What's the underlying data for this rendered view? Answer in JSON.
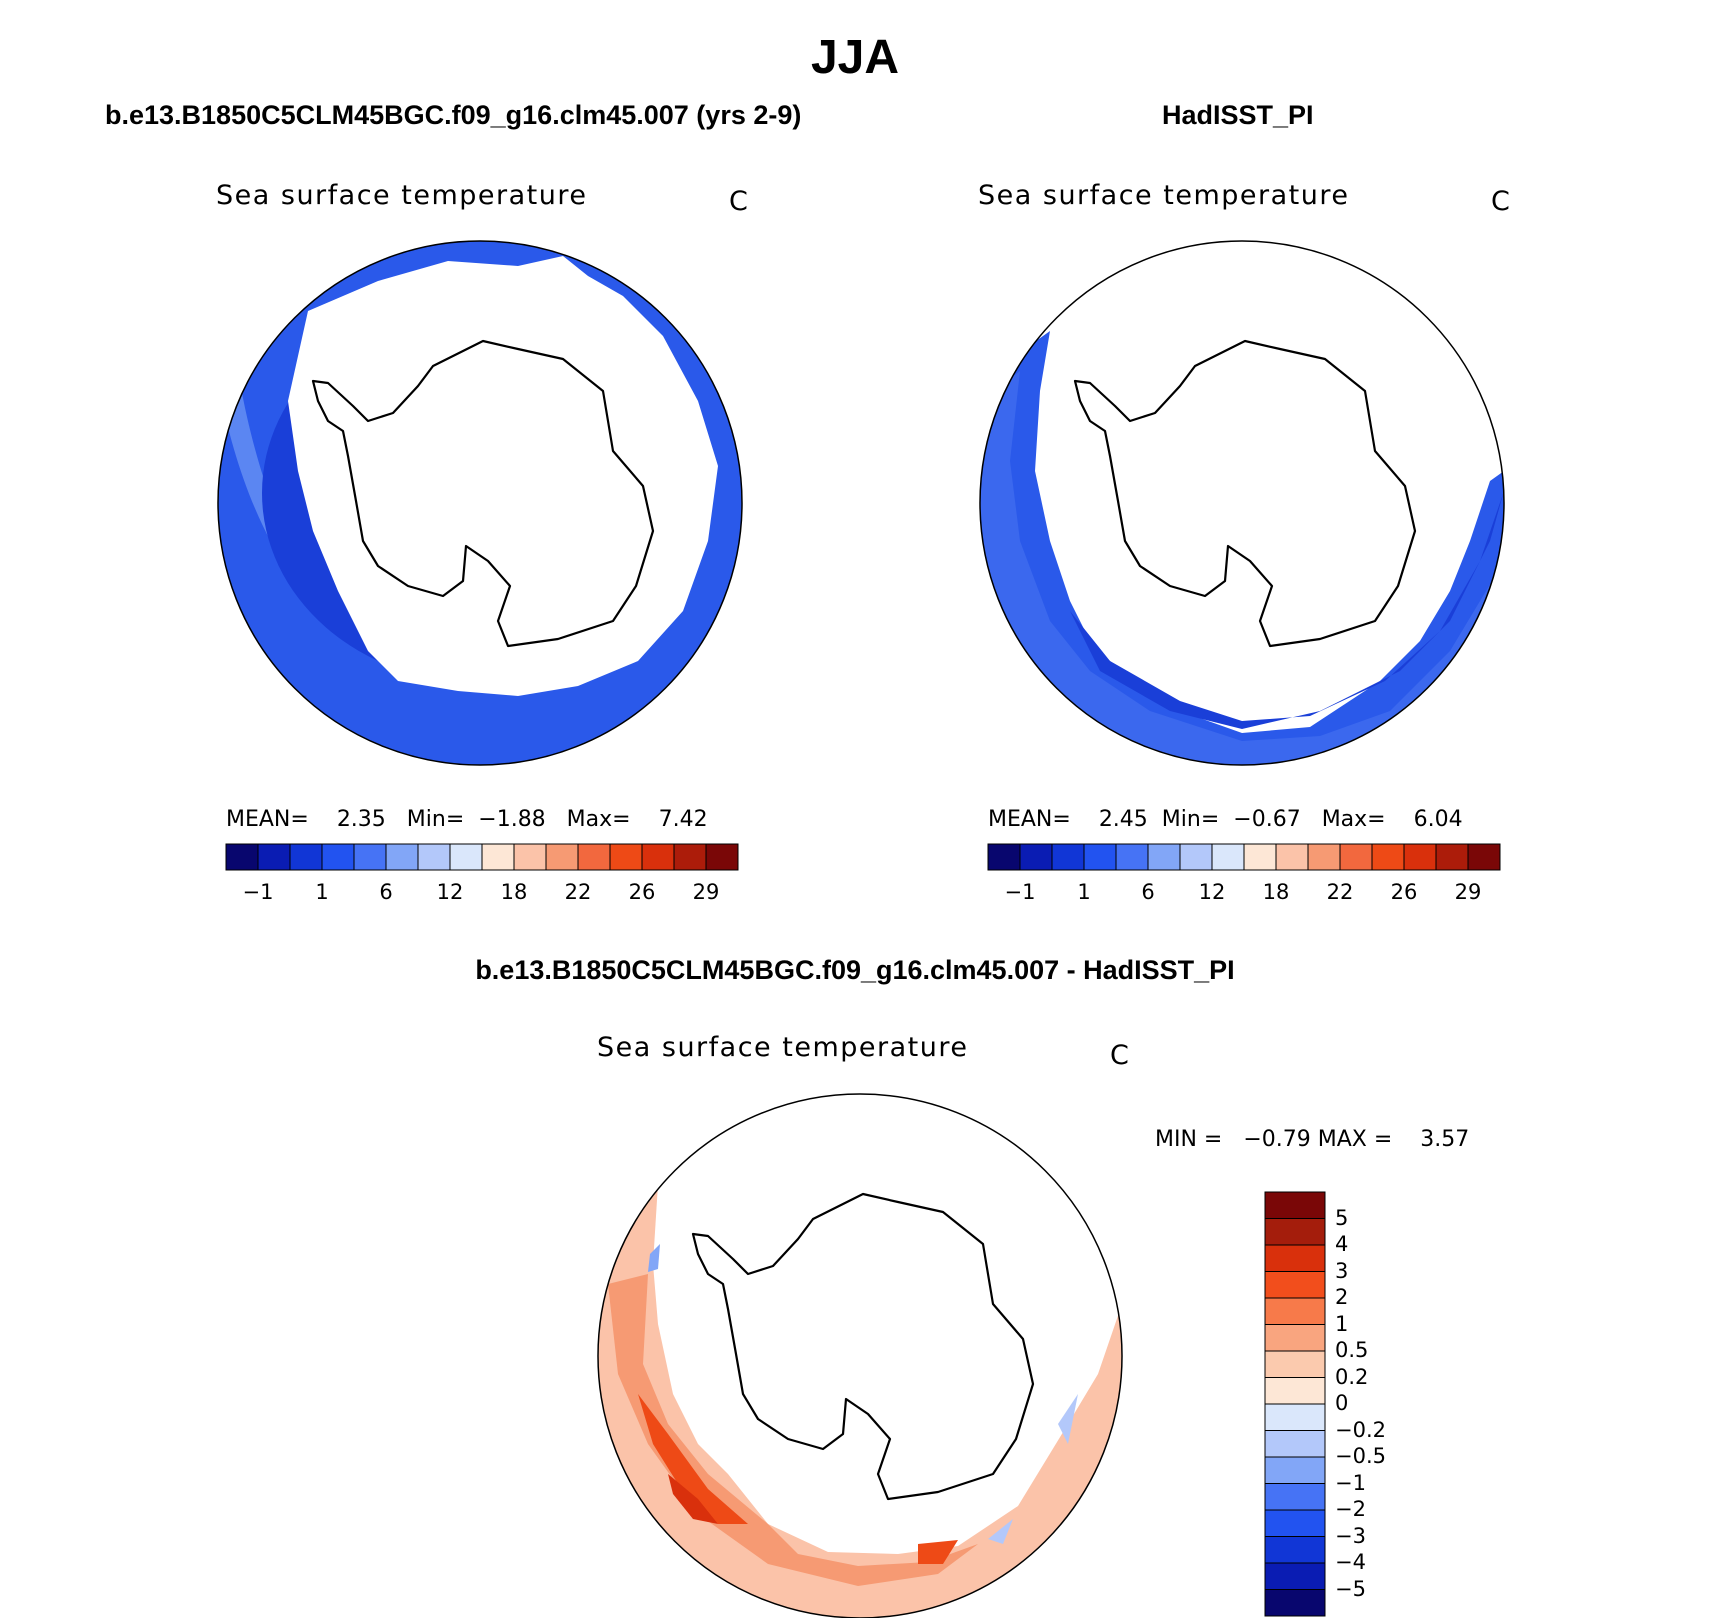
{
  "figure": {
    "season": "JJA",
    "panels": [
      {
        "id": "model",
        "title": "b.e13.B1850C5CLM45BGC.f09_g16.clm45.007 (yrs 2-9)",
        "variable_label": "Sea surface temperature",
        "units": "C",
        "stats": {
          "mean_label": "MEAN=",
          "mean": "2.35",
          "min_label": "Min=",
          "min": "−1.88",
          "max_label": "Max=",
          "max": "7.42"
        }
      },
      {
        "id": "obs",
        "title": "HadISST_PI",
        "variable_label": "Sea surface temperature",
        "units": "C",
        "stats": {
          "mean_label": "MEAN=",
          "mean": "2.45",
          "min_label": "Min=",
          "min": "−0.67",
          "max_label": "Max=",
          "max": "6.04"
        }
      },
      {
        "id": "diff",
        "title": "b.e13.B1850C5CLM45BGC.f09_g16.clm45.007 - HadISST_PI",
        "variable_label": "Sea surface temperature",
        "units": "C",
        "stats": {
          "min_label": "MIN =",
          "min": "−0.79",
          "max_label": "MAX =",
          "max": "3.57"
        }
      }
    ],
    "colorbar_abs": {
      "colors": [
        "#08066e",
        "#0a1cb3",
        "#1136d6",
        "#2253f0",
        "#4673f5",
        "#82a6f7",
        "#b3c8fa",
        "#dae7fb",
        "#fde7d6",
        "#fbc3a9",
        "#f69a73",
        "#f2683e",
        "#ee4a16",
        "#d9300c",
        "#ac1c0a",
        "#7a0707"
      ],
      "tick_labels": [
        "−1",
        "1",
        "6",
        "12",
        "18",
        "22",
        "26",
        "29"
      ]
    },
    "colorbar_diff": {
      "colors": [
        "#7a0707",
        "#a41d0c",
        "#d9300c",
        "#f24e1c",
        "#f77a4a",
        "#f9a57f",
        "#fbcaae",
        "#fde7d6",
        "#dae7fb",
        "#b3c8fa",
        "#82a6f7",
        "#4673f5",
        "#2253f0",
        "#1136d6",
        "#0a1cb3",
        "#08066e"
      ],
      "tick_labels": [
        "5",
        "4",
        "3",
        "2",
        "1",
        "0.5",
        "0.2",
        "0",
        "−0.2",
        "−0.5",
        "−1",
        "−2",
        "−3",
        "−4",
        "−5"
      ]
    }
  },
  "chart_data": [
    {
      "type": "heatmap",
      "title": "b.e13.B1850C5CLM45BGC.f09_g16.clm45.007 (yrs 2-9)",
      "variable": "Sea surface temperature",
      "units": "C",
      "projection": "south polar stereographic",
      "mean": 2.35,
      "min": -1.88,
      "max": 7.42,
      "levels": [
        -1,
        1,
        6,
        12,
        18,
        22,
        26,
        29
      ]
    },
    {
      "type": "heatmap",
      "title": "HadISST_PI",
      "variable": "Sea surface temperature",
      "units": "C",
      "projection": "south polar stereographic",
      "mean": 2.45,
      "min": -0.67,
      "max": 6.04,
      "levels": [
        -1,
        1,
        6,
        12,
        18,
        22,
        26,
        29
      ]
    },
    {
      "type": "heatmap",
      "title": "b.e13.B1850C5CLM45BGC.f09_g16.clm45.007 - HadISST_PI",
      "variable": "Sea surface temperature",
      "units": "C",
      "projection": "south polar stereographic",
      "min": -0.79,
      "max": 3.57,
      "levels": [
        -5,
        -4,
        -3,
        -2,
        -1,
        -0.5,
        -0.2,
        0,
        0.2,
        0.5,
        1,
        2,
        3,
        4,
        5
      ]
    }
  ]
}
